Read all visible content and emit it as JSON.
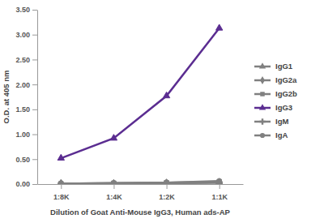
{
  "chart_data": {
    "type": "line",
    "x_label": "Dilution of Goat Anti-Mouse IgG3, Human ads-AP",
    "y_label": "O.D. at 405 nm",
    "categories": [
      "1:8K",
      "1:4K",
      "1:2K",
      "1:1K"
    ],
    "series": [
      {
        "name": "IgG1",
        "color": "#808080",
        "marker": "triangle",
        "values": [
          0.01,
          0.01,
          0.02,
          0.04
        ]
      },
      {
        "name": "IgG2a",
        "color": "#808080",
        "marker": "diamond",
        "values": [
          0.01,
          0.01,
          0.02,
          0.03
        ]
      },
      {
        "name": "IgG2b",
        "color": "#808080",
        "marker": "square",
        "values": [
          0.01,
          0.02,
          0.03,
          0.05
        ]
      },
      {
        "name": "IgG3",
        "color": "#5b2d91",
        "marker": "triangle",
        "values": [
          0.52,
          0.92,
          1.77,
          3.13
        ]
      },
      {
        "name": "IgM",
        "color": "#808080",
        "marker": "cross",
        "values": [
          0.01,
          0.01,
          0.02,
          0.03
        ]
      },
      {
        "name": "IgA",
        "color": "#808080",
        "marker": "circle",
        "values": [
          0.01,
          0.02,
          0.03,
          0.06
        ]
      }
    ],
    "ylim": [
      0,
      3.5
    ],
    "yticks": [
      {
        "value": 0,
        "label": "0.00"
      },
      {
        "value": 0.5,
        "label": "0.50"
      },
      {
        "value": 1,
        "label": "1.00"
      },
      {
        "value": 1.5,
        "label": "1.50"
      },
      {
        "value": 2,
        "label": "2.00"
      },
      {
        "value": 2.5,
        "label": "2.50"
      },
      {
        "value": 3,
        "label": "3.00"
      },
      {
        "value": 3.5,
        "label": "3.50"
      }
    ],
    "grid": false,
    "legend": "right"
  }
}
